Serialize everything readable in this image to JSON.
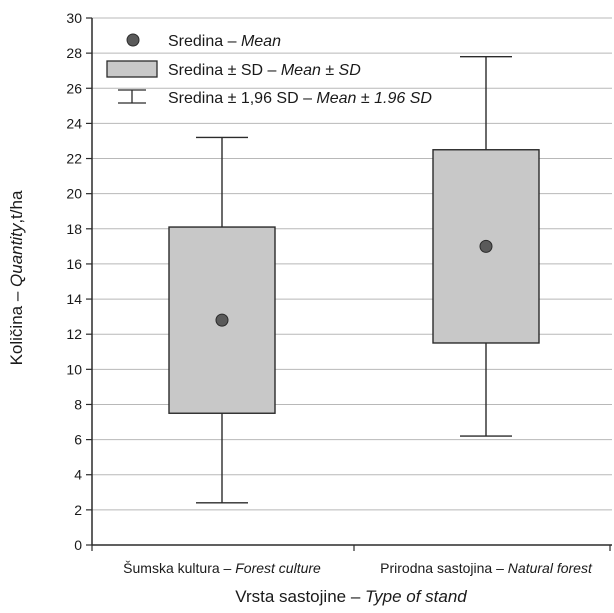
{
  "chart_data": {
    "type": "box",
    "ylabel_plain": "Količina – ",
    "ylabel_italic": "Quantity",
    "ylabel_unit": ",t/ha",
    "xlabel_plain": "Vrsta sastojine – ",
    "xlabel_italic": "Type of stand",
    "ylim": [
      0,
      30
    ],
    "yticks": [
      0,
      2,
      4,
      6,
      8,
      10,
      12,
      14,
      16,
      18,
      20,
      22,
      24,
      26,
      28,
      30
    ],
    "grid": true,
    "legend_position": "top-left",
    "legend": [
      {
        "kind": "mean",
        "plain": "Sredina – ",
        "italic": "Mean"
      },
      {
        "kind": "box",
        "plain": "Sredina ± SD – ",
        "italic": "Mean ± SD"
      },
      {
        "kind": "whisker",
        "plain": "Sredina ± 1,96 SD – ",
        "italic": "Mean ± 1.96 SD"
      }
    ],
    "categories": [
      {
        "plain": "Šumska kultura – ",
        "italic": "Forest culture"
      },
      {
        "plain": "Prirodna sastojina – ",
        "italic": "Natural forest"
      }
    ],
    "series": [
      {
        "mean": 12.8,
        "sd_low": 7.5,
        "sd_high": 18.1,
        "ci_low": 2.4,
        "ci_high": 23.2
      },
      {
        "mean": 17.0,
        "sd_low": 11.5,
        "sd_high": 22.5,
        "ci_low": 6.2,
        "ci_high": 27.8
      }
    ],
    "colors": {
      "box_fill": "#c8c8c8",
      "stroke": "#2b2b2b",
      "mean_fill": "#5a5a5a",
      "grid": "#b8b8b8"
    }
  }
}
